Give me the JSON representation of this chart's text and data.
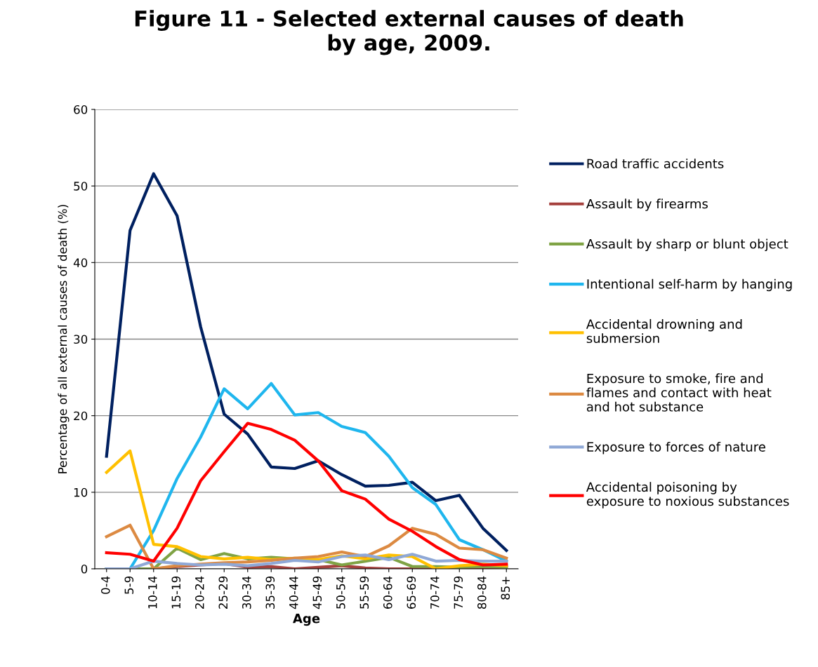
{
  "chart_data": {
    "type": "line",
    "title": "Figure 11 - Selected external causes of death\nby age, 2009.",
    "xlabel": "Age",
    "ylabel": "Percentage of all external causes of death (%)",
    "categories": [
      "0-4",
      "5-9",
      "10-14",
      "15-19",
      "20-24",
      "25-29",
      "30-34",
      "35-39",
      "40-44",
      "45-49",
      "50-54",
      "55-59",
      "60-64",
      "65-69",
      "70-74",
      "75-79",
      "80-84",
      "85+"
    ],
    "ylim": [
      0,
      60
    ],
    "yticks": [
      0,
      10,
      20,
      30,
      40,
      50,
      60
    ],
    "grid": "y",
    "legend": "right",
    "marker": "none",
    "line_style": "solid",
    "series": [
      {
        "name": "Road traffic accidents",
        "color": "#002060",
        "values": [
          14.7,
          44.2,
          51.6,
          46.1,
          31.6,
          20.2,
          17.6,
          13.3,
          13.1,
          14.1,
          12.3,
          10.8,
          10.9,
          11.3,
          8.9,
          9.6,
          5.3,
          2.4
        ]
      },
      {
        "name": "Assault by firearms",
        "color": "#a5403d",
        "values": [
          0,
          0,
          0,
          0.3,
          0.5,
          0.7,
          0.2,
          0.3,
          0,
          0.2,
          0.4,
          0.1,
          0,
          0,
          0,
          0,
          0,
          0.3
        ]
      },
      {
        "name": "Assault by sharp or blunt object",
        "color": "#7fa345",
        "values": [
          0,
          0,
          0,
          2.7,
          1.2,
          2.0,
          1.3,
          1.5,
          1.3,
          1.2,
          0.5,
          1.0,
          1.5,
          0.3,
          0.3,
          0.2,
          0.3,
          0.2
        ]
      },
      {
        "name": "Intentional self-harm by hanging",
        "color": "#1fb6ee",
        "values": [
          0,
          0,
          5.0,
          11.8,
          17.2,
          23.5,
          20.9,
          24.2,
          20.1,
          20.4,
          18.6,
          17.8,
          14.7,
          10.6,
          8.4,
          3.8,
          2.5,
          1.0
        ]
      },
      {
        "name": "Accidental drowning and\nsubmersion",
        "color": "#ffc000",
        "values": [
          12.6,
          15.4,
          3.2,
          2.9,
          1.6,
          1.3,
          1.5,
          1.2,
          1.4,
          1.2,
          1.7,
          1.3,
          1.8,
          1.6,
          0,
          0.4,
          0.6,
          0.4
        ]
      },
      {
        "name": "Exposure to smoke, fire and\nflames and contact with heat\nand hot substance",
        "color": "#dc8a42",
        "values": [
          4.2,
          5.7,
          0,
          0.4,
          0.6,
          0.8,
          0.9,
          1.1,
          1.4,
          1.6,
          2.2,
          1.6,
          3.0,
          5.3,
          4.5,
          2.7,
          2.5,
          1.4
        ]
      },
      {
        "name": "Exposure to forces of nature",
        "color": "#8fa8d6",
        "values": [
          0,
          0,
          1.0,
          0.7,
          0.5,
          0.6,
          0.4,
          0.7,
          1.1,
          0.9,
          1.6,
          1.8,
          1.2,
          1.9,
          1.0,
          1.1,
          1.0,
          1.0
        ]
      },
      {
        "name": "Accidental poisoning by\nexposure to noxious substances",
        "color": "#ff0000",
        "values": [
          2.1,
          1.9,
          1.0,
          5.3,
          11.5,
          15.3,
          19.0,
          18.2,
          16.8,
          14.1,
          10.2,
          9.1,
          6.5,
          4.9,
          2.9,
          1.2,
          0.5,
          0.6
        ]
      }
    ]
  }
}
